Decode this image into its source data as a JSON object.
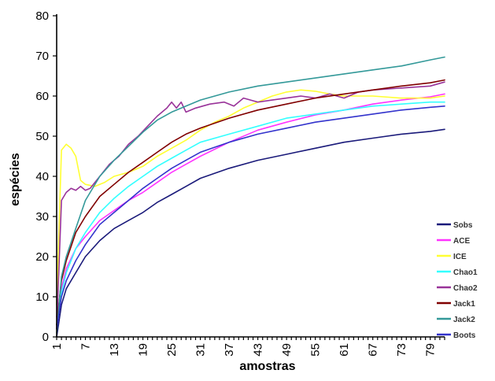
{
  "chart_data": {
    "type": "line",
    "xlabel": "amostras",
    "ylabel": "espécies",
    "ylim": [
      0,
      80
    ],
    "yticks": [
      0,
      10,
      20,
      30,
      40,
      50,
      60,
      70,
      80
    ],
    "xlim": [
      1,
      82
    ],
    "xticks": [
      1,
      7,
      13,
      19,
      25,
      31,
      37,
      43,
      49,
      55,
      61,
      67,
      73,
      79
    ],
    "legend_position": "right",
    "grid": false,
    "series": [
      {
        "name": "Sobs",
        "color": "#1a1a7a",
        "x": [
          1,
          2,
          3,
          5,
          7,
          10,
          13,
          16,
          19,
          22,
          25,
          28,
          31,
          37,
          43,
          49,
          55,
          61,
          67,
          73,
          79,
          82
        ],
        "y": [
          0,
          8,
          12,
          16,
          20,
          24,
          27,
          29,
          31,
          33.5,
          35.5,
          37.5,
          39.5,
          42,
          44,
          45.5,
          47,
          48.5,
          49.5,
          50.5,
          51.2,
          51.7
        ]
      },
      {
        "name": "ACE",
        "color": "#ff33ff",
        "x": [
          1,
          2,
          3,
          5,
          7,
          10,
          13,
          16,
          19,
          22,
          25,
          28,
          31,
          37,
          43,
          49,
          55,
          61,
          67,
          73,
          79,
          82
        ],
        "y": [
          5,
          12,
          17,
          22,
          25,
          29,
          31.5,
          34,
          36,
          38.5,
          41,
          43,
          45,
          48.5,
          51.5,
          53.5,
          55.3,
          56.5,
          58,
          59,
          59.8,
          60.5
        ]
      },
      {
        "name": "ICE",
        "color": "#ffff33",
        "x": [
          1,
          2,
          3,
          4,
          5,
          6,
          7,
          9,
          11,
          13,
          16,
          19,
          22,
          25,
          28,
          31,
          34,
          37,
          40,
          43,
          46,
          49,
          52,
          55,
          58,
          61,
          67,
          73,
          79,
          82
        ],
        "y": [
          8,
          46.5,
          48,
          47,
          45,
          39,
          38,
          37.5,
          38.5,
          40,
          41,
          42.5,
          45,
          47,
          49,
          51.5,
          53.5,
          55,
          57,
          58.5,
          60,
          61,
          61.5,
          61.2,
          60.5,
          60,
          60,
          59.5,
          59.5,
          60
        ]
      },
      {
        "name": "Chao1",
        "color": "#33ffff",
        "x": [
          1,
          2,
          3,
          5,
          7,
          10,
          13,
          16,
          19,
          22,
          25,
          28,
          31,
          37,
          43,
          49,
          55,
          61,
          67,
          73,
          79,
          82
        ],
        "y": [
          3,
          11,
          16,
          22,
          26,
          31,
          34.5,
          37.5,
          40,
          42.5,
          44.5,
          46.5,
          48.5,
          50.5,
          52.5,
          54.5,
          55.5,
          56.5,
          57.5,
          58,
          58.5,
          58.5
        ]
      },
      {
        "name": "Chao2",
        "color": "#993399",
        "x": [
          1,
          2,
          3,
          4,
          5,
          6,
          7,
          8,
          10,
          12,
          14,
          16,
          18,
          20,
          22,
          24,
          25,
          26,
          27,
          28,
          30,
          33,
          36,
          38,
          40,
          43,
          46,
          49,
          52,
          55,
          58,
          61,
          64,
          67,
          73,
          79,
          82
        ],
        "y": [
          2,
          34,
          36,
          37,
          36.5,
          37.5,
          36.5,
          37,
          40,
          43,
          45,
          48,
          50,
          52.5,
          55,
          57,
          58.5,
          57,
          58.5,
          56,
          57,
          58,
          58.5,
          57.5,
          59.5,
          58.5,
          59,
          59.5,
          60,
          59.5,
          60.5,
          59.5,
          61,
          61.5,
          62,
          62.5,
          63.5
        ]
      },
      {
        "name": "Jack1",
        "color": "#800000",
        "x": [
          1,
          2,
          3,
          5,
          7,
          10,
          13,
          16,
          19,
          22,
          25,
          28,
          31,
          37,
          43,
          49,
          55,
          61,
          67,
          73,
          79,
          82
        ],
        "y": [
          3,
          14,
          19,
          26,
          30,
          35,
          38,
          41,
          43.5,
          46,
          48.5,
          50.5,
          52,
          54.5,
          56.5,
          58,
          59.5,
          60.5,
          61.5,
          62.5,
          63.3,
          64
        ]
      },
      {
        "name": "Jack2",
        "color": "#339999",
        "x": [
          1,
          2,
          3,
          5,
          7,
          10,
          13,
          16,
          19,
          22,
          25,
          28,
          31,
          37,
          43,
          49,
          55,
          61,
          67,
          73,
          79,
          82
        ],
        "y": [
          1,
          15,
          20,
          27,
          34,
          40,
          44,
          47.5,
          51,
          54,
          56,
          57.5,
          59,
          61,
          62.5,
          63.5,
          64.5,
          65.5,
          66.5,
          67.5,
          69,
          69.7
        ]
      },
      {
        "name": "Boots",
        "color": "#3333cc",
        "x": [
          1,
          2,
          3,
          5,
          7,
          10,
          13,
          16,
          19,
          22,
          25,
          28,
          31,
          37,
          43,
          49,
          55,
          61,
          67,
          73,
          79,
          82
        ],
        "y": [
          2,
          10,
          14,
          19,
          23,
          28,
          31,
          34,
          37,
          39.5,
          42,
          44,
          46,
          48.5,
          50.5,
          52,
          53.5,
          54.5,
          55.5,
          56.5,
          57.2,
          57.5
        ]
      }
    ]
  }
}
